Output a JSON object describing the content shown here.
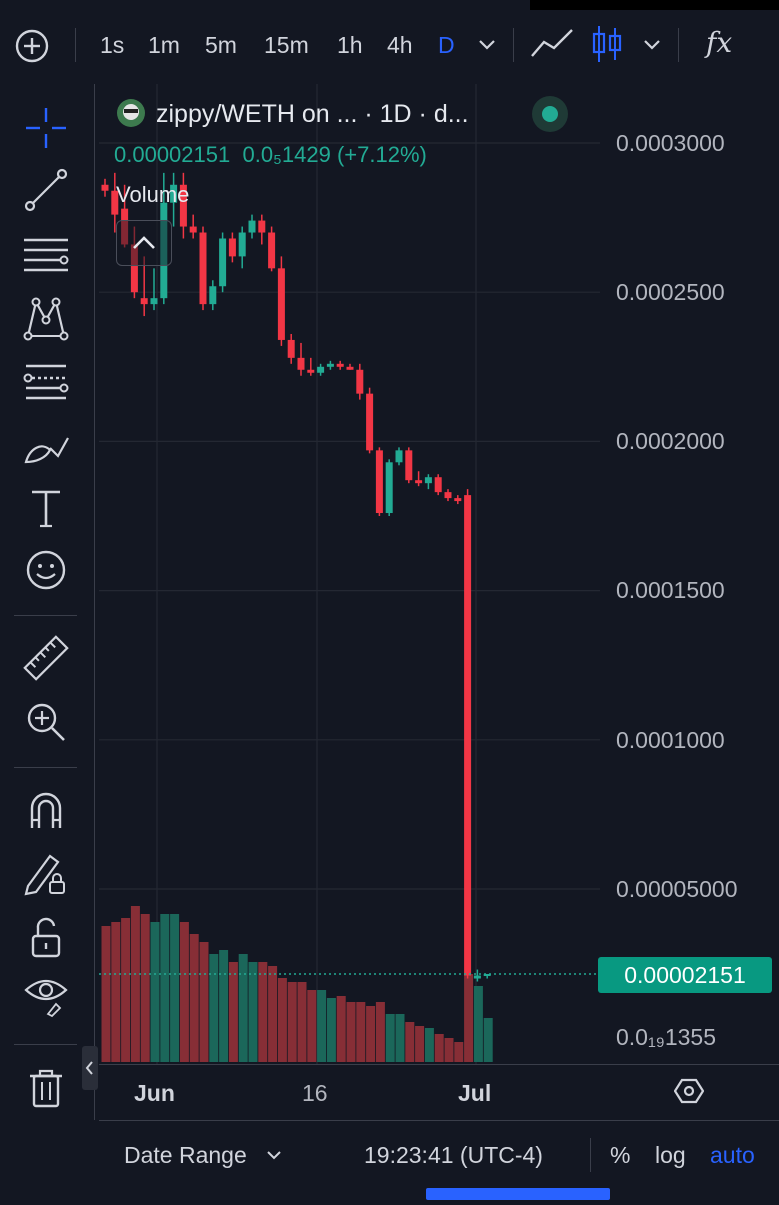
{
  "toolbar": {
    "add_label": "+",
    "intervals": [
      "1s",
      "1m",
      "5m",
      "15m",
      "1h",
      "4h",
      "D"
    ],
    "active_interval": "D",
    "indicators_label": "fx"
  },
  "legend": {
    "title": "zippy/WETH on ... · 1D · d...",
    "last_price": "0.00002151",
    "change": "0.0₅1429 (+7.12%)",
    "volume_label": "Volume"
  },
  "price_axis": {
    "labels": [
      "0.0003000",
      "0.0002500",
      "0.0002000",
      "0.0001500",
      "0.0001000",
      "0.00005000",
      "0.0₁₉1355"
    ],
    "current_price": "0.00002151"
  },
  "time_axis": {
    "labels": [
      "Jun",
      "16",
      "Jul"
    ]
  },
  "bottom_bar": {
    "date_range": "Date Range",
    "clock": "19:23:41 (UTC-4)",
    "percent": "%",
    "log": "log",
    "auto": "auto"
  },
  "colors": {
    "up": "#22ab94",
    "down": "#f23645",
    "accent": "#2962ff",
    "bg": "#131722"
  },
  "chart_data": {
    "type": "candlestick",
    "y_unit": "WETH",
    "ylim": [
      1.35e-05,
      0.00031
    ],
    "grid": true,
    "candles": [
      {
        "o": 0.000286,
        "h": 0.000288,
        "l": 0.000282,
        "c": 0.000284
      },
      {
        "o": 0.000284,
        "h": 0.00029,
        "l": 0.00027,
        "c": 0.000276
      },
      {
        "o": 0.000278,
        "h": 0.000286,
        "l": 0.000265,
        "c": 0.000266
      },
      {
        "o": 0.000266,
        "h": 0.000272,
        "l": 0.000248,
        "c": 0.00025
      },
      {
        "o": 0.000248,
        "h": 0.000262,
        "l": 0.000242,
        "c": 0.000246
      },
      {
        "o": 0.000246,
        "h": 0.000258,
        "l": 0.000244,
        "c": 0.000248
      },
      {
        "o": 0.000248,
        "h": 0.00029,
        "l": 0.000246,
        "c": 0.00028
      },
      {
        "o": 0.00028,
        "h": 0.00029,
        "l": 0.000272,
        "c": 0.000286
      },
      {
        "o": 0.000286,
        "h": 0.00029,
        "l": 0.000268,
        "c": 0.000272
      },
      {
        "o": 0.000272,
        "h": 0.000276,
        "l": 0.000268,
        "c": 0.00027
      },
      {
        "o": 0.00027,
        "h": 0.000272,
        "l": 0.000244,
        "c": 0.000246
      },
      {
        "o": 0.000246,
        "h": 0.000254,
        "l": 0.000244,
        "c": 0.000252
      },
      {
        "o": 0.000252,
        "h": 0.00027,
        "l": 0.00025,
        "c": 0.000268
      },
      {
        "o": 0.000268,
        "h": 0.00027,
        "l": 0.00026,
        "c": 0.000262
      },
      {
        "o": 0.000262,
        "h": 0.000272,
        "l": 0.000258,
        "c": 0.00027
      },
      {
        "o": 0.00027,
        "h": 0.000276,
        "l": 0.000268,
        "c": 0.000274
      },
      {
        "o": 0.000274,
        "h": 0.000276,
        "l": 0.000266,
        "c": 0.00027
      },
      {
        "o": 0.00027,
        "h": 0.000272,
        "l": 0.000257,
        "c": 0.000258
      },
      {
        "o": 0.000258,
        "h": 0.000262,
        "l": 0.000232,
        "c": 0.000234
      },
      {
        "o": 0.000234,
        "h": 0.000236,
        "l": 0.000226,
        "c": 0.000228
      },
      {
        "o": 0.000228,
        "h": 0.000233,
        "l": 0.000222,
        "c": 0.000224
      },
      {
        "o": 0.000224,
        "h": 0.000228,
        "l": 0.000222,
        "c": 0.000223
      },
      {
        "o": 0.000223,
        "h": 0.000226,
        "l": 0.000222,
        "c": 0.000225
      },
      {
        "o": 0.000225,
        "h": 0.000227,
        "l": 0.000224,
        "c": 0.000226
      },
      {
        "o": 0.000226,
        "h": 0.000227,
        "l": 0.000224,
        "c": 0.000225
      },
      {
        "o": 0.000225,
        "h": 0.000226,
        "l": 0.000224,
        "c": 0.000224
      },
      {
        "o": 0.000224,
        "h": 0.000226,
        "l": 0.000214,
        "c": 0.000216
      },
      {
        "o": 0.000216,
        "h": 0.000218,
        "l": 0.000196,
        "c": 0.000197
      },
      {
        "o": 0.000197,
        "h": 0.000198,
        "l": 0.000175,
        "c": 0.000176
      },
      {
        "o": 0.000176,
        "h": 0.000194,
        "l": 0.000175,
        "c": 0.000193
      },
      {
        "o": 0.000193,
        "h": 0.000198,
        "l": 0.000192,
        "c": 0.000197
      },
      {
        "o": 0.000197,
        "h": 0.000198,
        "l": 0.000186,
        "c": 0.000187
      },
      {
        "o": 0.000187,
        "h": 0.00019,
        "l": 0.000185,
        "c": 0.000186
      },
      {
        "o": 0.000186,
        "h": 0.000189,
        "l": 0.000184,
        "c": 0.000188
      },
      {
        "o": 0.000188,
        "h": 0.000189,
        "l": 0.000182,
        "c": 0.000183
      },
      {
        "o": 0.000183,
        "h": 0.000184,
        "l": 0.00018,
        "c": 0.000181
      },
      {
        "o": 0.000181,
        "h": 0.000182,
        "l": 0.000179,
        "c": 0.00018
      },
      {
        "o": 0.000182,
        "h": 0.000184,
        "l": 2e-05,
        "c": 2.1e-05
      },
      {
        "o": 2e-05,
        "h": 2.3e-05,
        "l": 1.9e-05,
        "c": 2.1e-05
      },
      {
        "o": 2.1e-05,
        "h": 2.15e-05,
        "l": 2e-05,
        "c": 2.151e-05
      }
    ]
  }
}
